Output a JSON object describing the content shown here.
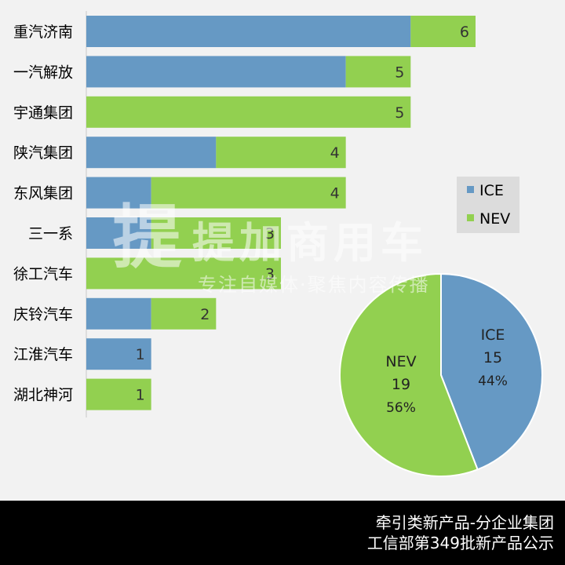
{
  "chart_data": [
    {
      "type": "bar",
      "orientation": "horizontal",
      "stacked": true,
      "categories": [
        "重汽济南",
        "一汽解放",
        "宇通集团",
        "陕汽集团",
        "东风集团",
        "三一系",
        "徐工汽车",
        "庆铃汽车",
        "江淮汽车",
        "湖北神河"
      ],
      "series": [
        {
          "name": "ICE",
          "color": "#6699c4",
          "values": [
            5,
            4,
            0,
            2,
            1,
            1,
            0,
            1,
            1,
            0
          ]
        },
        {
          "name": "NEV",
          "color": "#92d050",
          "values": [
            1,
            1,
            5,
            2,
            3,
            2,
            3,
            1,
            0,
            1
          ]
        }
      ],
      "totals": [
        "6",
        "5",
        "5",
        "4",
        "4",
        "3",
        "3",
        "2",
        "1",
        "1"
      ],
      "xlim": [
        0,
        6
      ],
      "grid": false,
      "legend": {
        "position": "right",
        "entries": [
          "ICE",
          "NEV"
        ]
      }
    },
    {
      "type": "pie",
      "slices": [
        {
          "label": "ICE",
          "value": 15,
          "percent": "44%",
          "color": "#6699c4"
        },
        {
          "label": "NEV",
          "value": 19,
          "percent": "56%",
          "color": "#92d050"
        }
      ]
    }
  ],
  "watermark": {
    "title": "提加商用车",
    "subtitle": "专注自媒体·聚焦内容传播",
    "logo": "提"
  },
  "footer": {
    "line1": "牵引类新产品-分企业集团",
    "line2": "工信部第349批新产品公示"
  }
}
